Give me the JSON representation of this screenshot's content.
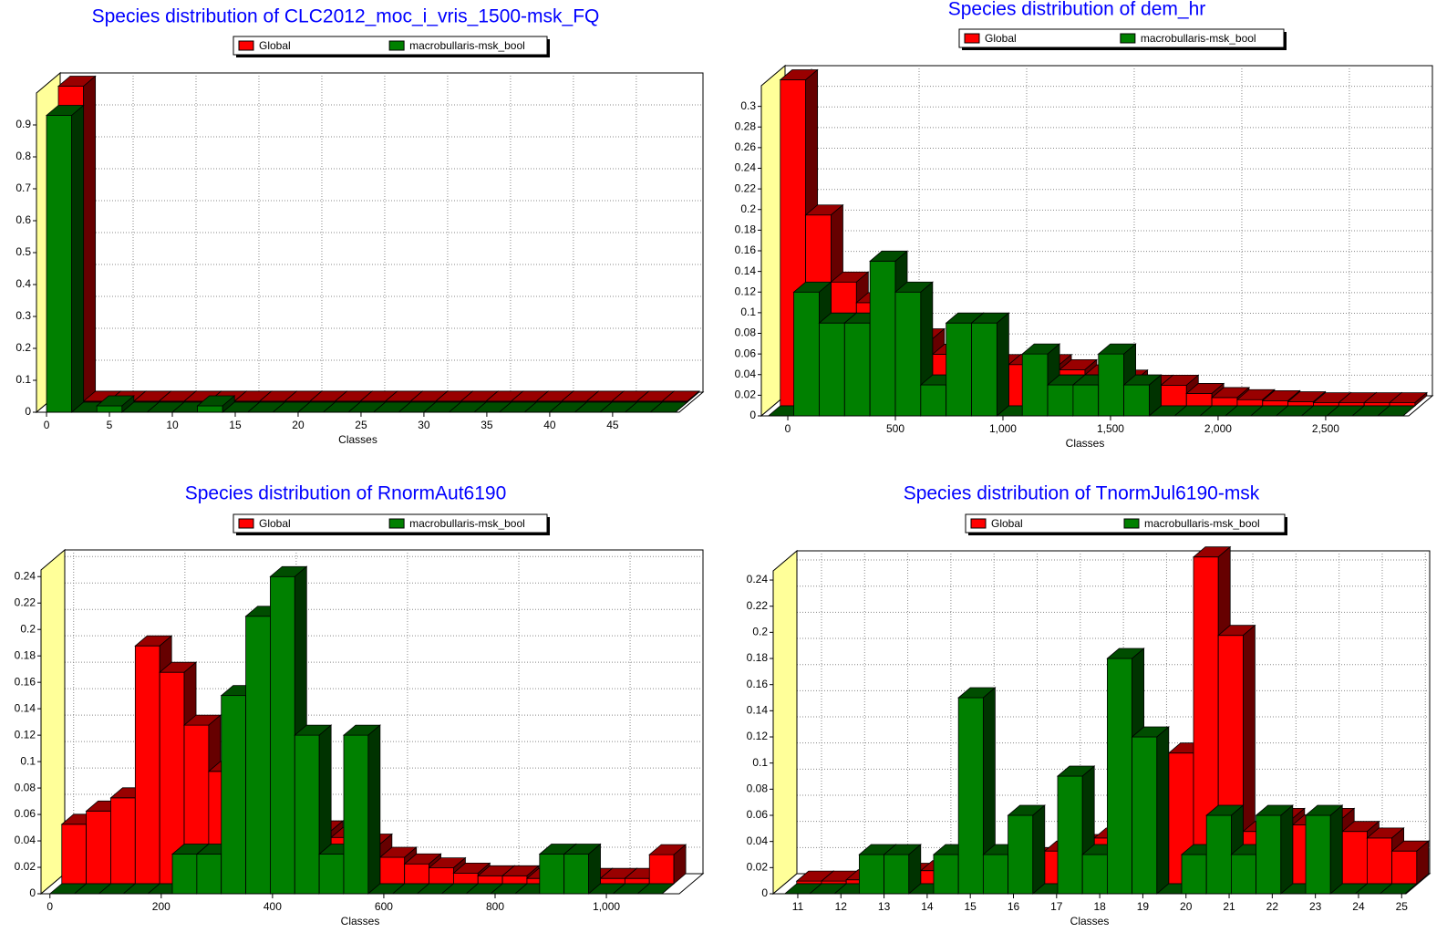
{
  "chart_data": [
    {
      "type": "histogram",
      "title": "Species distribution of CLC2012_moc_i_vris_1500-msk_FQ",
      "x_label": "Classes",
      "bins": [
        0,
        2,
        4,
        6,
        8,
        10,
        12,
        14,
        16,
        18,
        20,
        22,
        24,
        26,
        28,
        30,
        32,
        34,
        36,
        38,
        40,
        42,
        44,
        46,
        48,
        50
      ],
      "series": [
        {
          "name": "Global",
          "color": "#ff0000",
          "values": [
            0.99,
            0.003,
            0.003,
            0.003,
            0.003,
            0.003,
            0.003,
            0.003,
            0.003,
            0.003,
            0.003,
            0.003,
            0.003,
            0.003,
            0.003,
            0.003,
            0.003,
            0.003,
            0.003,
            0.003,
            0.003,
            0.003,
            0.003,
            0.003,
            0.003
          ]
        },
        {
          "name": "macrobullaris-msk_bool",
          "color": "#008000",
          "values": [
            0.93,
            0,
            0.02,
            0,
            0,
            0,
            0.02,
            0,
            0,
            0,
            0,
            0,
            0,
            0,
            0,
            0,
            0,
            0,
            0,
            0,
            0,
            0,
            0,
            0,
            0
          ]
        }
      ],
      "xlim": [
        -0.8,
        50.3
      ],
      "xticks": [
        0,
        5,
        10,
        15,
        20,
        25,
        30,
        35,
        40,
        45
      ],
      "ylim": [
        0,
        1.0
      ],
      "yticks": [
        0,
        0.1,
        0.2,
        0.3,
        0.4,
        0.5,
        0.6,
        0.7,
        0.8,
        0.9
      ],
      "grid": true
    },
    {
      "type": "histogram",
      "title": "Species distribution of dem_hr",
      "x_label": "Classes",
      "bins": [
        -90,
        28,
        146,
        264,
        382,
        500,
        618,
        736,
        854,
        972,
        1090,
        1208,
        1326,
        1444,
        1562,
        1680,
        1798,
        1916,
        2034,
        2152,
        2270,
        2388,
        2506,
        2624,
        2742,
        2860
      ],
      "series": [
        {
          "name": "Global",
          "color": "#ff0000",
          "values": [
            0.316,
            0.185,
            0.12,
            0.1,
            0.08,
            0.065,
            0.05,
            0.045,
            0.04,
            0.04,
            0.04,
            0.035,
            0.03,
            0.025,
            0.02,
            0.02,
            0.012,
            0.008,
            0.006,
            0.005,
            0.004,
            0.003,
            0.003,
            0.003,
            0.003
          ]
        },
        {
          "name": "macrobullaris-msk_bool",
          "color": "#008000",
          "values": [
            0,
            0.12,
            0.09,
            0.09,
            0.15,
            0.12,
            0.03,
            0.09,
            0.09,
            0,
            0.06,
            0.03,
            0.03,
            0.06,
            0.03,
            0,
            0,
            0,
            0,
            0,
            0,
            0,
            0,
            0,
            0
          ]
        }
      ],
      "xlim": [
        -123,
        2886
      ],
      "xticks": [
        0,
        500,
        {
          "value": 1000,
          "label": "1,000"
        },
        {
          "value": 1500,
          "label": "1,500"
        },
        {
          "value": 2000,
          "label": "2,000"
        },
        {
          "value": 2500,
          "label": "2,500"
        }
      ],
      "ylim": [
        0,
        0.32
      ],
      "yticks": [
        0,
        0.02,
        0.04,
        0.06,
        0.08,
        0.1,
        0.12,
        0.14,
        0.16,
        0.18,
        0.2,
        0.22,
        0.24,
        0.26,
        0.28,
        0.3
      ],
      "grid": true
    },
    {
      "type": "histogram",
      "title": "Species distribution of RnormAut6190",
      "x_label": "Classes",
      "bins": [
        0,
        44,
        88,
        132,
        176,
        220,
        264,
        308,
        352,
        396,
        440,
        484,
        528,
        572,
        616,
        660,
        704,
        748,
        792,
        836,
        880,
        924,
        968,
        1012,
        1056,
        1100
      ],
      "series": [
        {
          "name": "Global",
          "color": "#ff0000",
          "values": [
            0.045,
            0.055,
            0.065,
            0.18,
            0.16,
            0.12,
            0.085,
            0.07,
            0.06,
            0.05,
            0.04,
            0.035,
            0.03,
            0.02,
            0.015,
            0.012,
            0.008,
            0.006,
            0.006,
            0.004,
            0.004,
            0.004,
            0.004,
            0.004,
            0.022
          ]
        },
        {
          "name": "macrobullaris-msk_bool",
          "color": "#008000",
          "values": [
            0,
            0,
            0,
            0,
            0,
            0.03,
            0.03,
            0.15,
            0.21,
            0.24,
            0.12,
            0.03,
            0.12,
            0,
            0,
            0,
            0,
            0,
            0,
            0,
            0.03,
            0.03,
            0,
            0,
            0
          ]
        }
      ],
      "xlim": [
        -16,
        1131
      ],
      "xticks": [
        0,
        200,
        400,
        600,
        800,
        {
          "value": 1000,
          "label": "1,000"
        }
      ],
      "ylim": [
        0,
        0.245
      ],
      "yticks": [
        0,
        0.02,
        0.04,
        0.06,
        0.08,
        0.1,
        0.12,
        0.14,
        0.16,
        0.18,
        0.2,
        0.22,
        0.24
      ],
      "grid": true
    },
    {
      "type": "histogram",
      "title": "Species distribution of TnormJul6190-msk",
      "x_label": "Classes",
      "bins": [
        10.7,
        11.275,
        11.85,
        12.425,
        13,
        13.575,
        14.15,
        14.725,
        15.3,
        15.875,
        16.45,
        17.025,
        17.6,
        18.175,
        18.75,
        19.325,
        19.9,
        20.475,
        21.05,
        21.625,
        22.2,
        22.775,
        23.35,
        23.925,
        24.5,
        25.075
      ],
      "series": [
        {
          "name": "Global",
          "color": "#ff0000",
          "values": [
            0.002,
            0.002,
            0.003,
            0.005,
            0.008,
            0.01,
            0.012,
            0.015,
            0.018,
            0.02,
            0.025,
            0.03,
            0.035,
            0.04,
            0.06,
            0.1,
            0.25,
            0.19,
            0.04,
            0.05,
            0.045,
            0.05,
            0.04,
            0.035,
            0.025
          ]
        },
        {
          "name": "macrobullaris-msk_bool",
          "color": "#008000",
          "values": [
            0,
            0,
            0,
            0.03,
            0.03,
            0,
            0.03,
            0.15,
            0.03,
            0.06,
            0,
            0.09,
            0.03,
            0.18,
            0.12,
            0,
            0.03,
            0.06,
            0.03,
            0.06,
            0,
            0.06,
            0,
            0,
            0
          ]
        }
      ],
      "xlim": [
        10.43,
        25.1
      ],
      "xticks": [
        11,
        12,
        13,
        14,
        15,
        16,
        17,
        18,
        19,
        20,
        21,
        22,
        23,
        24,
        25
      ],
      "ylim": [
        0,
        0.247
      ],
      "yticks": [
        0,
        0.02,
        0.04,
        0.06,
        0.08,
        0.1,
        0.12,
        0.14,
        0.16,
        0.18,
        0.2,
        0.22,
        0.24
      ],
      "grid": true
    }
  ]
}
